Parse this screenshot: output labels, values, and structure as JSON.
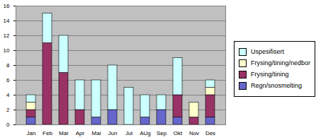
{
  "chart_data": {
    "type": "bar",
    "stacked": true,
    "grid": true,
    "legend": "right",
    "categories": [
      "Jan",
      "Feb",
      "Mar",
      "Apr",
      "Mai",
      "Jun",
      "Jul",
      "AUg",
      "Sep",
      "Okt",
      "Nov",
      "Des"
    ],
    "series": [
      {
        "name": "Regn/snosmelting",
        "color": "#6666cc",
        "values": [
          1,
          0,
          0,
          0,
          1,
          2,
          0,
          1,
          2,
          1,
          0,
          1
        ]
      },
      {
        "name": "Frysing/tining",
        "color": "#993366",
        "values": [
          1,
          11,
          7,
          2,
          0,
          0,
          0,
          0,
          0,
          3,
          1,
          3
        ]
      },
      {
        "name": "Frysing/tining/nedbor",
        "color": "#ffffcc",
        "values": [
          1,
          0,
          0,
          0,
          0,
          0,
          0,
          0,
          0,
          0,
          2,
          1
        ]
      },
      {
        "name": "Uspesifisert",
        "color": "#ccffff",
        "values": [
          1,
          4,
          5,
          4,
          5,
          6,
          5,
          3,
          2,
          5,
          0,
          1
        ]
      }
    ],
    "ylim": [
      0,
      16
    ],
    "yticks": [
      0,
      2,
      4,
      6,
      8,
      10,
      12,
      14,
      16
    ]
  }
}
